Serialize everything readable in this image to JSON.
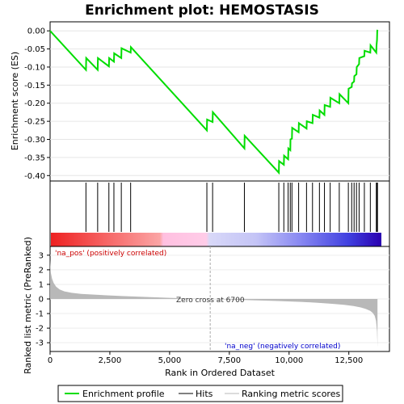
{
  "title": "Enrichment plot: HEMOSTASIS",
  "colors": {
    "es_line": "#00dd00",
    "hit": "#000000",
    "metric_fill": "#b8b8b8",
    "pos_label": "#cc0000",
    "neg_label": "#0000cc",
    "zero_line": "#aaaaaa"
  },
  "chart_data": [
    {
      "name": "enrichment-profile",
      "type": "line",
      "ylabel": "Enrichment score (ES)",
      "xlim": [
        0,
        14200
      ],
      "ylim": [
        -0.415,
        0.025
      ],
      "yticks": [
        "0.00",
        "-0.05",
        "-0.10",
        "-0.15",
        "-0.20",
        "-0.25",
        "-0.30",
        "-0.35",
        "-0.40"
      ],
      "x": [
        0,
        1500,
        1510,
        1990,
        2000,
        2460,
        2470,
        2670,
        2680,
        2980,
        2990,
        3370,
        3380,
        6560,
        6570,
        6800,
        6810,
        8130,
        8140,
        9570,
        9580,
        9780,
        9790,
        9960,
        9970,
        10050,
        10060,
        10120,
        10130,
        10400,
        10410,
        10730,
        10740,
        10980,
        10990,
        11270,
        11280,
        11480,
        11490,
        11720,
        11730,
        12100,
        12110,
        12480,
        12490,
        12620,
        12630,
        12720,
        12730,
        12820,
        12830,
        12930,
        12940,
        13150,
        13160,
        13400,
        13410,
        13650,
        13660,
        13680,
        13690,
        13700
      ],
      "y": [
        0.0,
        -0.108,
        -0.075,
        -0.108,
        -0.075,
        -0.098,
        -0.075,
        -0.085,
        -0.062,
        -0.075,
        -0.048,
        -0.06,
        -0.045,
        -0.275,
        -0.245,
        -0.252,
        -0.225,
        -0.325,
        -0.29,
        -0.392,
        -0.36,
        -0.37,
        -0.345,
        -0.355,
        -0.325,
        -0.33,
        -0.3,
        -0.298,
        -0.268,
        -0.28,
        -0.255,
        -0.27,
        -0.25,
        -0.255,
        -0.232,
        -0.24,
        -0.22,
        -0.232,
        -0.205,
        -0.21,
        -0.185,
        -0.2,
        -0.175,
        -0.2,
        -0.16,
        -0.155,
        -0.145,
        -0.14,
        -0.125,
        -0.12,
        -0.1,
        -0.092,
        -0.075,
        -0.07,
        -0.055,
        -0.06,
        -0.04,
        -0.06,
        -0.04,
        -0.025,
        0.0,
        0.003
      ]
    },
    {
      "name": "hits",
      "type": "scatter",
      "x": [
        1500,
        1990,
        2460,
        2670,
        2980,
        3370,
        6560,
        6800,
        8130,
        9570,
        9780,
        9960,
        10050,
        10120,
        10400,
        10730,
        10980,
        11270,
        11480,
        11720,
        12100,
        12480,
        12620,
        12720,
        12820,
        12930,
        13150,
        13400,
        13650,
        13680,
        13700
      ]
    },
    {
      "name": "ranked-list-metric",
      "type": "area",
      "xlabel": "Rank in Ordered Dataset",
      "ylabel": "Ranked list metric (PreRanked)",
      "xlim": [
        0,
        14200
      ],
      "ylim": [
        -3.6,
        3.6
      ],
      "xticks": [
        "0",
        "2,500",
        "5,000",
        "7,500",
        "10,000",
        "12,500"
      ],
      "yticks": [
        "3",
        "2",
        "1",
        "0",
        "-1",
        "-2",
        "-3"
      ],
      "x": [
        0,
        30,
        80,
        150,
        250,
        400,
        600,
        900,
        1300,
        2000,
        3000,
        4000,
        5000,
        6000,
        6700,
        7500,
        8500,
        9500,
        10500,
        11200,
        11800,
        12300,
        12700,
        13000,
        13200,
        13400,
        13500,
        13580,
        13640,
        13680,
        13700
      ],
      "y": [
        2.7,
        1.8,
        1.4,
        1.1,
        0.85,
        0.65,
        0.52,
        0.42,
        0.35,
        0.28,
        0.2,
        0.14,
        0.08,
        0.03,
        0.0,
        -0.04,
        -0.09,
        -0.14,
        -0.2,
        -0.26,
        -0.33,
        -0.4,
        -0.48,
        -0.58,
        -0.68,
        -0.82,
        -0.95,
        -1.15,
        -1.5,
        -2.2,
        -3.3
      ],
      "zero_cross_label": "Zero cross at 6700",
      "zero_cross_x": 6700,
      "pos_label": "'na_pos' (positively correlated)",
      "neg_label": "'na_neg' (negatively correlated)"
    }
  ],
  "legend": {
    "items": [
      {
        "label": "Enrichment profile"
      },
      {
        "label": "Hits"
      },
      {
        "label": "Ranking metric scores"
      }
    ]
  }
}
